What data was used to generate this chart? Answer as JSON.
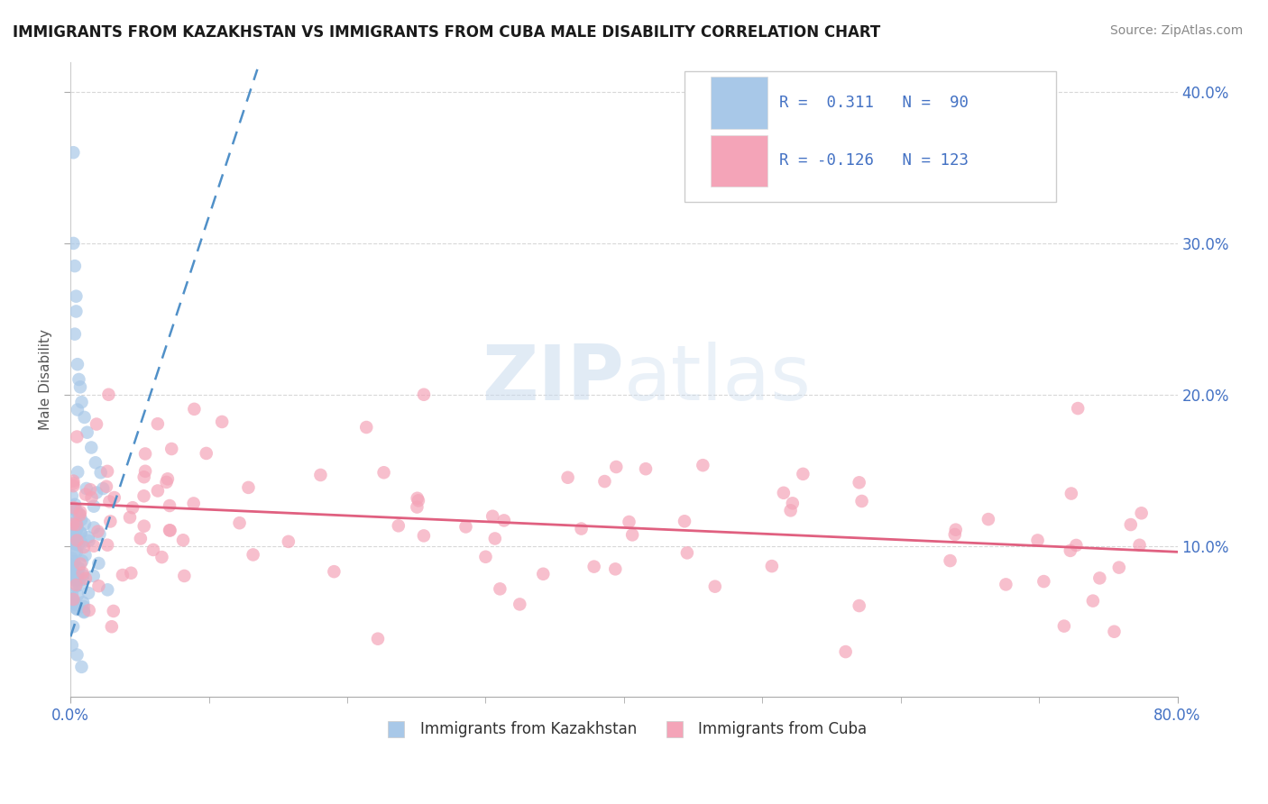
{
  "title": "IMMIGRANTS FROM KAZAKHSTAN VS IMMIGRANTS FROM CUBA MALE DISABILITY CORRELATION CHART",
  "source": "Source: ZipAtlas.com",
  "ylabel": "Male Disability",
  "xlim": [
    0.0,
    0.8
  ],
  "ylim": [
    0.0,
    0.42
  ],
  "xtick_major": [
    0.0,
    0.8
  ],
  "xtick_minor": [
    0.1,
    0.2,
    0.3,
    0.4,
    0.5,
    0.6,
    0.7
  ],
  "ytick_right": [
    0.1,
    0.2,
    0.3,
    0.4
  ],
  "ytick_right_labels": [
    "10.0%",
    "20.0%",
    "30.0%",
    "40.0%"
  ],
  "kazakhstan_color": "#a8c8e8",
  "cuba_color": "#f4a4b8",
  "kazakhstan_line_color": "#5090c8",
  "cuba_line_color": "#e06080",
  "kazakhstan_R": 0.311,
  "kazakhstan_N": 90,
  "cuba_R": -0.126,
  "cuba_N": 123,
  "watermark_zip": "ZIP",
  "watermark_atlas": "atlas",
  "background_color": "#ffffff",
  "title_fontsize": 12,
  "grid_color": "#d8d8d8",
  "legend_text_color": "#4472c4",
  "legend_N_color": "#4472c4"
}
